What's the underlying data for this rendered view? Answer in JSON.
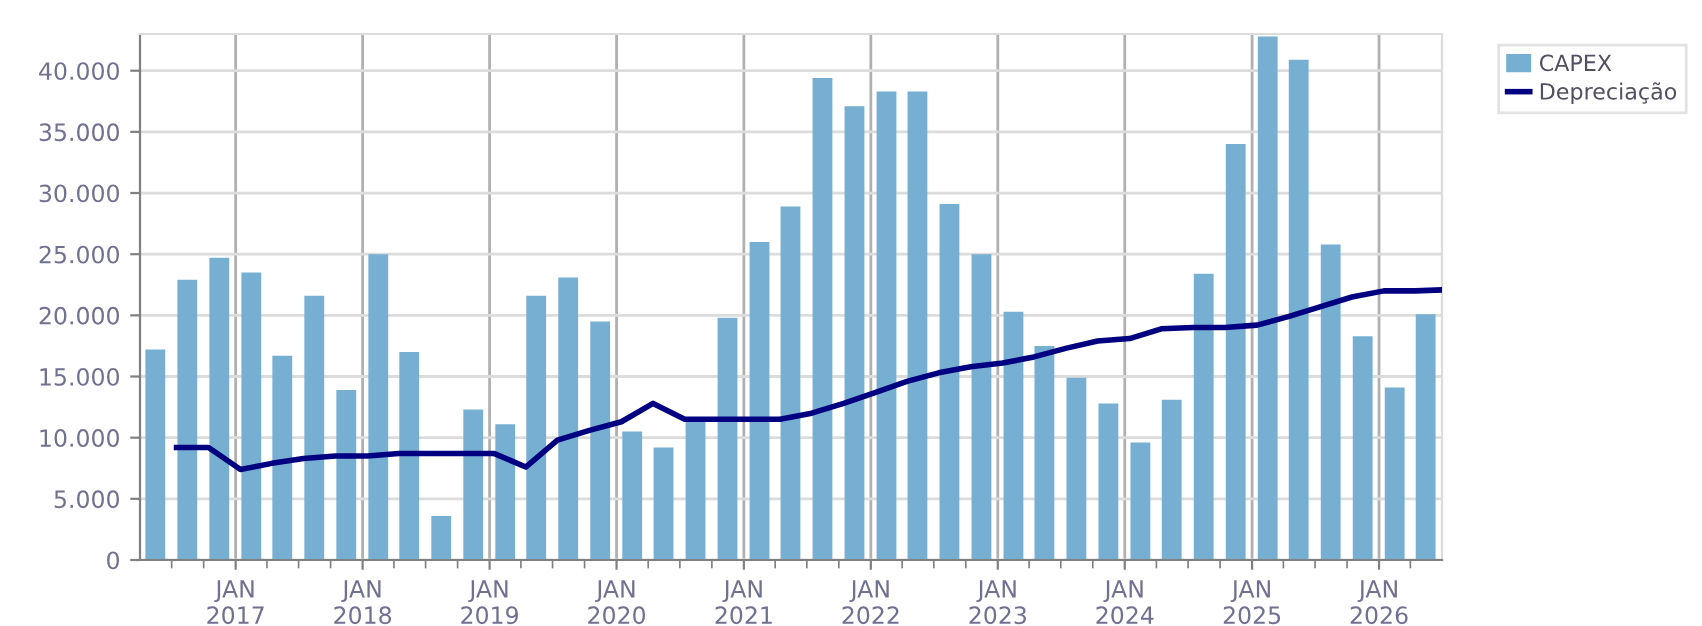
{
  "chart_data": {
    "type": "bar",
    "x": [
      "2016-05-15",
      "2016-08-15",
      "2016-11-15",
      "2017-02-15",
      "2017-05-15",
      "2017-08-15",
      "2017-11-15",
      "2018-02-15",
      "2018-05-15",
      "2018-08-15",
      "2018-11-15",
      "2019-02-15",
      "2019-05-15",
      "2019-08-15",
      "2019-11-15",
      "2020-02-15",
      "2020-05-15",
      "2020-08-15",
      "2020-11-15",
      "2021-02-15",
      "2021-05-15",
      "2021-08-15",
      "2021-11-15",
      "2022-02-15",
      "2022-05-15",
      "2022-08-15",
      "2022-11-15",
      "2023-02-15",
      "2023-05-15",
      "2023-08-15",
      "2023-11-15",
      "2024-02-15",
      "2024-05-15",
      "2024-08-15",
      "2024-11-15",
      "2025-02-15",
      "2025-05-15",
      "2025-08-15",
      "2025-11-15",
      "2026-02-15",
      "2026-05-15"
    ],
    "series": [
      {
        "name": "CAPEX",
        "color": "#76afd1",
        "values": [
          17200,
          22900,
          24700,
          23500,
          16700,
          21600,
          13900,
          25000,
          17000,
          3600,
          12300,
          11100,
          21600,
          23100,
          19500,
          10500,
          9200,
          11500,
          19800,
          26000,
          28900,
          39400,
          37100,
          38300,
          38300,
          29100,
          25000,
          20300,
          17500,
          14900,
          12800,
          9600,
          13100,
          23400,
          34000,
          42800,
          40900,
          25800,
          18300,
          14100,
          20100
        ]
      },
      {
        "name": "Depreciação",
        "type": "line",
        "color": "#000080",
        "x": [
          "2016-07",
          "2016-10",
          "2017-01",
          "2017-04",
          "2017-07",
          "2017-10",
          "2018-01",
          "2018-04",
          "2018-07",
          "2018-10",
          "2019-01",
          "2019-04",
          "2019-07",
          "2019-10",
          "2020-01",
          "2020-04",
          "2020-07",
          "2020-10",
          "2021-01",
          "2021-04",
          "2021-07",
          "2021-10",
          "2022-01",
          "2022-04",
          "2022-07",
          "2022-10",
          "2023-01",
          "2023-04",
          "2023-07",
          "2023-10",
          "2024-01",
          "2024-04",
          "2024-07",
          "2024-10",
          "2025-01",
          "2025-04",
          "2025-07",
          "2025-10",
          "2026-01",
          "2026-04",
          "2026-07"
        ],
        "values": [
          9200,
          9200,
          7400,
          7900,
          8300,
          8500,
          8500,
          8700,
          8700,
          8700,
          8700,
          7600,
          9800,
          10600,
          11300,
          12800,
          11500,
          11500,
          11500,
          11500,
          12000,
          12800,
          13700,
          14600,
          15300,
          15800,
          16100,
          16600,
          17300,
          17900,
          18100,
          18900,
          19000,
          19000,
          19200,
          19900,
          20700,
          21500,
          22000,
          22000,
          22100
        ]
      }
    ],
    "xlim": [
      "2016-04-01",
      "2026-07-01"
    ],
    "xticks": [
      {
        "value": "2016-07-01",
        "label": null
      },
      {
        "value": "2016-10-01",
        "label": null
      },
      {
        "value": "2017-01-01",
        "label": "JAN\n2017"
      },
      {
        "value": "2017-04-01",
        "label": null
      },
      {
        "value": "2017-07-01",
        "label": null
      },
      {
        "value": "2017-10-01",
        "label": null
      },
      {
        "value": "2018-01-01",
        "label": "JAN\n2018"
      },
      {
        "value": "2018-04-01",
        "label": null
      },
      {
        "value": "2018-07-01",
        "label": null
      },
      {
        "value": "2018-10-01",
        "label": null
      },
      {
        "value": "2019-01-01",
        "label": "JAN\n2019"
      },
      {
        "value": "2019-04-01",
        "label": null
      },
      {
        "value": "2019-07-01",
        "label": null
      },
      {
        "value": "2019-10-01",
        "label": null
      },
      {
        "value": "2020-01-01",
        "label": "JAN\n2020"
      },
      {
        "value": "2020-04-01",
        "label": null
      },
      {
        "value": "2020-07-01",
        "label": null
      },
      {
        "value": "2020-10-01",
        "label": null
      },
      {
        "value": "2021-01-01",
        "label": "JAN\n2021"
      },
      {
        "value": "2021-04-01",
        "label": null
      },
      {
        "value": "2021-07-01",
        "label": null
      },
      {
        "value": "2021-10-01",
        "label": null
      },
      {
        "value": "2022-01-01",
        "label": "JAN\n2022"
      },
      {
        "value": "2022-04-01",
        "label": null
      },
      {
        "value": "2022-07-01",
        "label": null
      },
      {
        "value": "2022-10-01",
        "label": null
      },
      {
        "value": "2023-01-01",
        "label": "JAN\n2023"
      },
      {
        "value": "2023-04-01",
        "label": null
      },
      {
        "value": "2023-07-01",
        "label": null
      },
      {
        "value": "2023-10-01",
        "label": null
      },
      {
        "value": "2024-01-01",
        "label": "JAN\n2024"
      },
      {
        "value": "2024-04-01",
        "label": null
      },
      {
        "value": "2024-07-01",
        "label": null
      },
      {
        "value": "2024-10-01",
        "label": null
      },
      {
        "value": "2025-01-01",
        "label": "JAN\n2025"
      },
      {
        "value": "2025-04-01",
        "label": null
      },
      {
        "value": "2025-07-01",
        "label": null
      },
      {
        "value": "2025-10-01",
        "label": null
      },
      {
        "value": "2026-01-01",
        "label": "JAN\n2026"
      },
      {
        "value": "2026-04-01",
        "label": null
      }
    ],
    "ylim": [
      0,
      43000
    ],
    "yticks": [
      0,
      {
        "value": 5000,
        "label": "5.000"
      },
      {
        "value": 10000,
        "label": "10.000"
      },
      {
        "value": 15000,
        "label": "15.000"
      },
      {
        "value": 20000,
        "label": "20.000"
      },
      {
        "value": 25000,
        "label": "25.000"
      },
      {
        "value": 30000,
        "label": "30.000"
      },
      {
        "value": 35000,
        "label": "35.000"
      },
      {
        "value": 40000,
        "label": "40.000"
      }
    ],
    "grid": true,
    "legend": "top right",
    "marker": "none",
    "line_style": "solid"
  }
}
